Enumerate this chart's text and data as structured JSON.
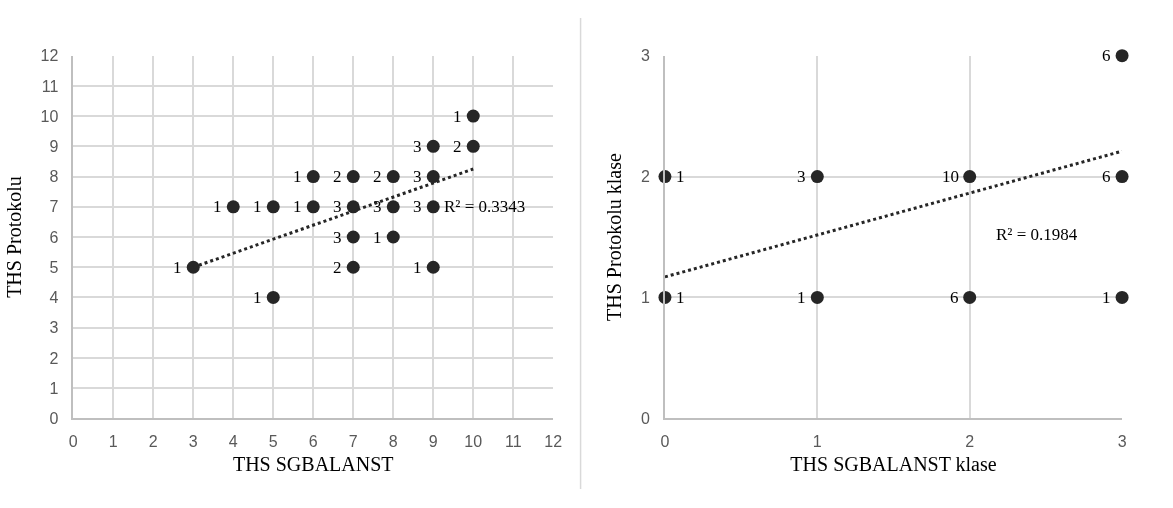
{
  "chart_data": [
    {
      "type": "scatter",
      "xlabel": "THS SGBALANST",
      "ylabel": "THS Protokolu",
      "xlim": [
        0,
        12
      ],
      "ylim": [
        0,
        12
      ],
      "xticks": [
        0,
        1,
        2,
        3,
        4,
        5,
        6,
        7,
        8,
        9,
        10,
        11,
        12
      ],
      "yticks": [
        0,
        1,
        2,
        3,
        4,
        5,
        6,
        7,
        8,
        9,
        10,
        11,
        12
      ],
      "grid": true,
      "annotations": [
        "R² = 0.3343",
        {
          "text": "1",
          "x": 10,
          "y": 10
        },
        {
          "text": "3",
          "x": 9,
          "y": 9
        },
        {
          "text": "2",
          "x": 10,
          "y": 9
        },
        {
          "text": "1",
          "x": 6,
          "y": 8
        },
        {
          "text": "2",
          "x": 7,
          "y": 8
        },
        {
          "text": "2",
          "x": 8,
          "y": 8
        },
        {
          "text": "3",
          "x": 9,
          "y": 8
        },
        {
          "text": "1",
          "x": 4,
          "y": 7
        },
        {
          "text": "1",
          "x": 5,
          "y": 7
        },
        {
          "text": "1",
          "x": 6,
          "y": 7
        },
        {
          "text": "3",
          "x": 7,
          "y": 7
        },
        {
          "text": "3",
          "x": 8,
          "y": 7
        },
        {
          "text": "3",
          "x": 9,
          "y": 7
        },
        {
          "text": "3",
          "x": 7,
          "y": 6
        },
        {
          "text": "1",
          "x": 8,
          "y": 6
        },
        {
          "text": "1",
          "x": 3,
          "y": 5
        },
        {
          "text": "2",
          "x": 7,
          "y": 5
        },
        {
          "text": "1",
          "x": 9,
          "y": 5
        },
        {
          "text": "1",
          "x": 5,
          "y": 4
        }
      ],
      "series": [
        {
          "color": "#262626",
          "marker": "circle",
          "x": [
            10,
            9,
            10,
            6,
            7,
            8,
            9,
            4,
            5,
            6,
            7,
            8,
            9,
            7,
            8,
            3,
            7,
            9,
            5
          ],
          "values": [
            10,
            9,
            9,
            8,
            8,
            8,
            8,
            7,
            7,
            7,
            7,
            7,
            7,
            6,
            6,
            5,
            5,
            5,
            4
          ]
        },
        {
          "type": "line",
          "line_style": "dotted",
          "color": "#262626",
          "x": [
            3,
            10
          ],
          "values": [
            5.0,
            8.25
          ]
        }
      ]
    },
    {
      "type": "scatter",
      "xlabel": "THS SGBALANST klase",
      "ylabel": "THS Protokolu klase",
      "xlim": [
        0,
        3
      ],
      "ylim": [
        0,
        3
      ],
      "xticks": [
        0,
        1,
        2,
        3
      ],
      "yticks": [
        0,
        1,
        2,
        3
      ],
      "grid": true,
      "annotations": [
        "R² = 0.1984",
        {
          "text": "1",
          "x": 0,
          "y": 1
        },
        {
          "text": "1",
          "x": 0,
          "y": 2
        },
        {
          "text": "1",
          "x": 1,
          "y": 1
        },
        {
          "text": "3",
          "x": 1,
          "y": 2
        },
        {
          "text": "6",
          "x": 2,
          "y": 1
        },
        {
          "text": "10",
          "x": 2,
          "y": 2
        },
        {
          "text": "1",
          "x": 3,
          "y": 1
        },
        {
          "text": "6",
          "x": 3,
          "y": 2
        },
        {
          "text": "6",
          "x": 3,
          "y": 3
        }
      ],
      "series": [
        {
          "color": "#262626",
          "marker": "circle",
          "x": [
            0,
            0,
            1,
            1,
            2,
            2,
            3,
            3,
            3
          ],
          "values": [
            1,
            2,
            1,
            2,
            1,
            2,
            1,
            2,
            3
          ]
        },
        {
          "type": "line",
          "line_style": "dotted",
          "color": "#262626",
          "x": [
            0,
            3
          ],
          "values": [
            1.17,
            2.21
          ]
        }
      ]
    }
  ]
}
